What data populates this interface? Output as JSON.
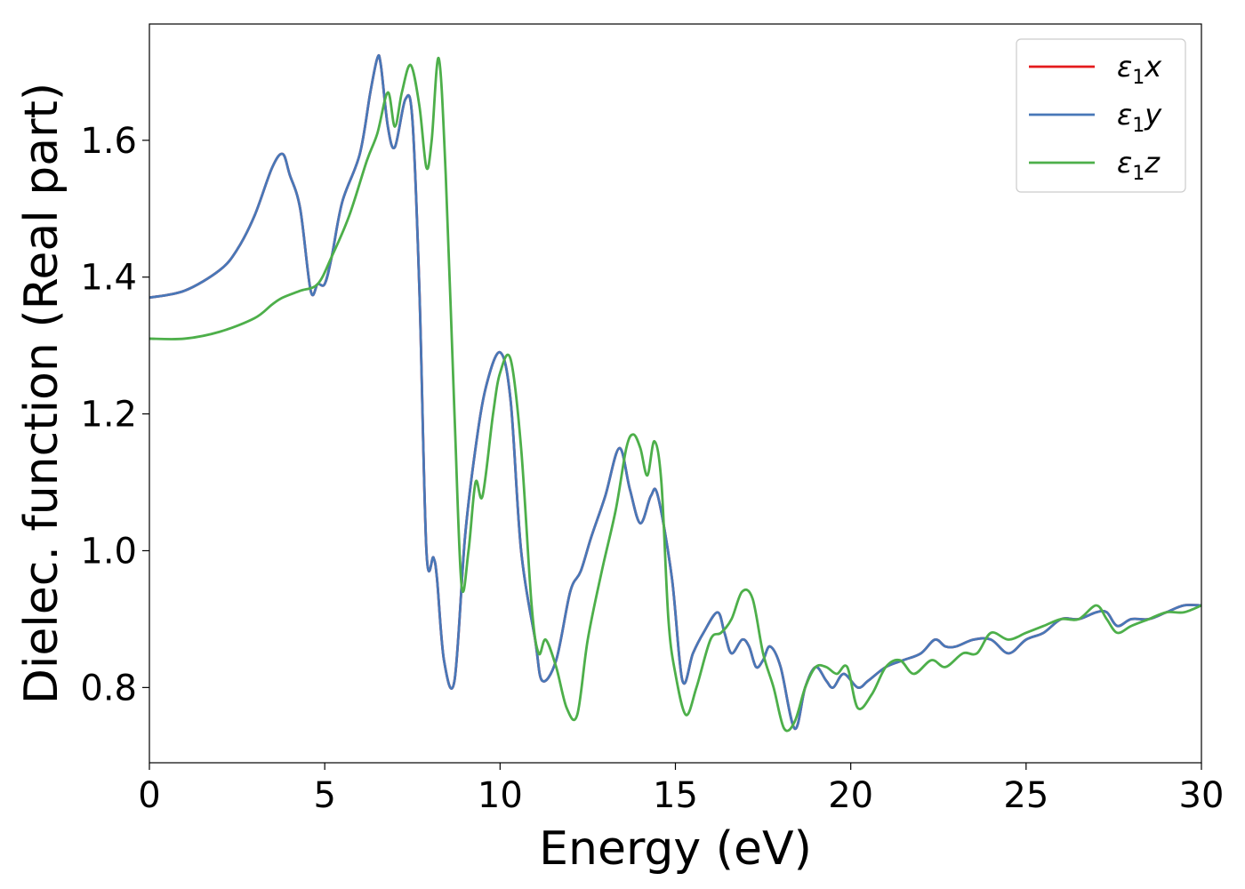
{
  "chart_data": {
    "type": "line",
    "title": "",
    "xlabel": "Energy (eV)",
    "ylabel": "Dielec. function (Real part)",
    "xlim": [
      0,
      30
    ],
    "ylim": [
      0.69,
      1.77
    ],
    "xticks": [
      0,
      5,
      10,
      15,
      20,
      25,
      30
    ],
    "xtick_labels": [
      "0",
      "5",
      "10",
      "15",
      "20",
      "25",
      "30"
    ],
    "yticks": [
      0.8,
      1.0,
      1.2,
      1.4,
      1.6
    ],
    "ytick_labels": [
      "0.8",
      "1.0",
      "1.2",
      "1.4",
      "1.6"
    ],
    "grid": false,
    "legend_position": "top-right",
    "series": [
      {
        "name": "ε₁x",
        "legend_base": "ε",
        "legend_sub": "1",
        "legend_var": "x",
        "color": "#e41a1c",
        "x": [
          0,
          1,
          2,
          2.5,
          3,
          3.5,
          3.8,
          4.0,
          4.3,
          4.6,
          4.8,
          5.0,
          5.2,
          5.5,
          6.0,
          6.3,
          6.5,
          6.6,
          6.8,
          7.0,
          7.3,
          7.5,
          7.7,
          7.9,
          8.1,
          8.2,
          8.4,
          8.7,
          9.0,
          9.3,
          9.6,
          10.0,
          10.3,
          10.6,
          11.0,
          11.2,
          11.6,
          12.0,
          12.3,
          12.6,
          13.0,
          13.4,
          13.7,
          14.0,
          14.3,
          14.5,
          14.9,
          15.2,
          15.5,
          15.8,
          16.2,
          16.4,
          16.6,
          16.9,
          17.1,
          17.3,
          17.5,
          17.7,
          18.0,
          18.4,
          18.7,
          19.0,
          19.3,
          19.5,
          19.8,
          20.2,
          20.5,
          21.0,
          21.5,
          22.0,
          22.4,
          22.7,
          23.0,
          23.5,
          24.0,
          24.5,
          25.0,
          25.5,
          26.0,
          26.5,
          27.0,
          27.3,
          27.6,
          28.0,
          28.5,
          29.0,
          29.5,
          30.0
        ],
        "values": [
          1.37,
          1.38,
          1.41,
          1.44,
          1.49,
          1.56,
          1.58,
          1.55,
          1.5,
          1.38,
          1.39,
          1.39,
          1.43,
          1.51,
          1.58,
          1.67,
          1.72,
          1.71,
          1.62,
          1.59,
          1.66,
          1.63,
          1.38,
          1.0,
          0.99,
          0.96,
          0.84,
          0.81,
          1.02,
          1.15,
          1.24,
          1.29,
          1.22,
          1.0,
          0.87,
          0.81,
          0.84,
          0.94,
          0.97,
          1.02,
          1.08,
          1.15,
          1.09,
          1.04,
          1.08,
          1.08,
          0.96,
          0.81,
          0.85,
          0.88,
          0.91,
          0.88,
          0.85,
          0.87,
          0.86,
          0.83,
          0.84,
          0.86,
          0.83,
          0.74,
          0.8,
          0.83,
          0.81,
          0.8,
          0.82,
          0.8,
          0.81,
          0.83,
          0.84,
          0.85,
          0.87,
          0.86,
          0.86,
          0.87,
          0.87,
          0.85,
          0.87,
          0.88,
          0.9,
          0.9,
          0.91,
          0.91,
          0.89,
          0.9,
          0.9,
          0.91,
          0.92,
          0.92
        ]
      },
      {
        "name": "ε₁y",
        "legend_base": "ε",
        "legend_sub": "1",
        "legend_var": "y",
        "color": "#4878b8",
        "x": [
          0,
          1,
          2,
          2.5,
          3,
          3.5,
          3.8,
          4.0,
          4.3,
          4.6,
          4.8,
          5.0,
          5.2,
          5.5,
          6.0,
          6.3,
          6.5,
          6.6,
          6.8,
          7.0,
          7.3,
          7.5,
          7.7,
          7.9,
          8.1,
          8.2,
          8.4,
          8.7,
          9.0,
          9.3,
          9.6,
          10.0,
          10.3,
          10.6,
          11.0,
          11.2,
          11.6,
          12.0,
          12.3,
          12.6,
          13.0,
          13.4,
          13.7,
          14.0,
          14.3,
          14.5,
          14.9,
          15.2,
          15.5,
          15.8,
          16.2,
          16.4,
          16.6,
          16.9,
          17.1,
          17.3,
          17.5,
          17.7,
          18.0,
          18.4,
          18.7,
          19.0,
          19.3,
          19.5,
          19.8,
          20.2,
          20.5,
          21.0,
          21.5,
          22.0,
          22.4,
          22.7,
          23.0,
          23.5,
          24.0,
          24.5,
          25.0,
          25.5,
          26.0,
          26.5,
          27.0,
          27.3,
          27.6,
          28.0,
          28.5,
          29.0,
          29.5,
          30.0
        ],
        "values": [
          1.37,
          1.38,
          1.41,
          1.44,
          1.49,
          1.56,
          1.58,
          1.55,
          1.5,
          1.38,
          1.39,
          1.39,
          1.43,
          1.51,
          1.58,
          1.67,
          1.72,
          1.71,
          1.62,
          1.59,
          1.66,
          1.63,
          1.38,
          1.0,
          0.99,
          0.96,
          0.84,
          0.81,
          1.02,
          1.15,
          1.24,
          1.29,
          1.22,
          1.0,
          0.87,
          0.81,
          0.84,
          0.94,
          0.97,
          1.02,
          1.08,
          1.15,
          1.09,
          1.04,
          1.08,
          1.08,
          0.96,
          0.81,
          0.85,
          0.88,
          0.91,
          0.88,
          0.85,
          0.87,
          0.86,
          0.83,
          0.84,
          0.86,
          0.83,
          0.74,
          0.8,
          0.83,
          0.81,
          0.8,
          0.82,
          0.8,
          0.81,
          0.83,
          0.84,
          0.85,
          0.87,
          0.86,
          0.86,
          0.87,
          0.87,
          0.85,
          0.87,
          0.88,
          0.9,
          0.9,
          0.91,
          0.91,
          0.89,
          0.9,
          0.9,
          0.91,
          0.92,
          0.92
        ]
      },
      {
        "name": "ε₁z",
        "legend_base": "ε",
        "legend_sub": "1",
        "legend_var": "z",
        "color": "#4daf4a",
        "x": [
          0,
          1,
          2,
          3,
          3.5,
          3.8,
          4.3,
          4.8,
          5.2,
          5.7,
          6.2,
          6.5,
          6.8,
          7.0,
          7.2,
          7.45,
          7.7,
          7.9,
          8.05,
          8.25,
          8.45,
          8.7,
          8.9,
          9.1,
          9.3,
          9.5,
          9.8,
          10.0,
          10.3,
          10.6,
          10.9,
          11.1,
          11.3,
          11.6,
          11.9,
          12.2,
          12.5,
          12.9,
          13.3,
          13.6,
          13.8,
          14.0,
          14.2,
          14.4,
          14.6,
          14.8,
          15.0,
          15.3,
          15.6,
          16.0,
          16.3,
          16.6,
          16.9,
          17.2,
          17.5,
          17.8,
          18.1,
          18.4,
          18.7,
          19.0,
          19.3,
          19.6,
          19.9,
          20.2,
          20.6,
          21.0,
          21.4,
          21.8,
          22.3,
          22.7,
          23.2,
          23.6,
          24.0,
          24.5,
          25.0,
          25.5,
          26.0,
          26.5,
          27.0,
          27.3,
          27.6,
          28.0,
          28.5,
          29.0,
          29.5,
          30.0
        ],
        "values": [
          1.31,
          1.31,
          1.32,
          1.34,
          1.36,
          1.37,
          1.38,
          1.39,
          1.43,
          1.49,
          1.57,
          1.61,
          1.67,
          1.62,
          1.67,
          1.71,
          1.65,
          1.56,
          1.6,
          1.72,
          1.55,
          1.2,
          0.95,
          1.0,
          1.1,
          1.08,
          1.2,
          1.26,
          1.28,
          1.15,
          0.92,
          0.85,
          0.87,
          0.83,
          0.77,
          0.76,
          0.87,
          0.97,
          1.06,
          1.15,
          1.17,
          1.15,
          1.11,
          1.16,
          1.1,
          0.9,
          0.82,
          0.76,
          0.8,
          0.87,
          0.88,
          0.9,
          0.94,
          0.93,
          0.85,
          0.8,
          0.74,
          0.75,
          0.8,
          0.83,
          0.83,
          0.82,
          0.83,
          0.77,
          0.79,
          0.83,
          0.84,
          0.82,
          0.84,
          0.83,
          0.85,
          0.85,
          0.88,
          0.87,
          0.88,
          0.89,
          0.9,
          0.9,
          0.92,
          0.9,
          0.88,
          0.89,
          0.9,
          0.91,
          0.91,
          0.92
        ]
      }
    ]
  }
}
